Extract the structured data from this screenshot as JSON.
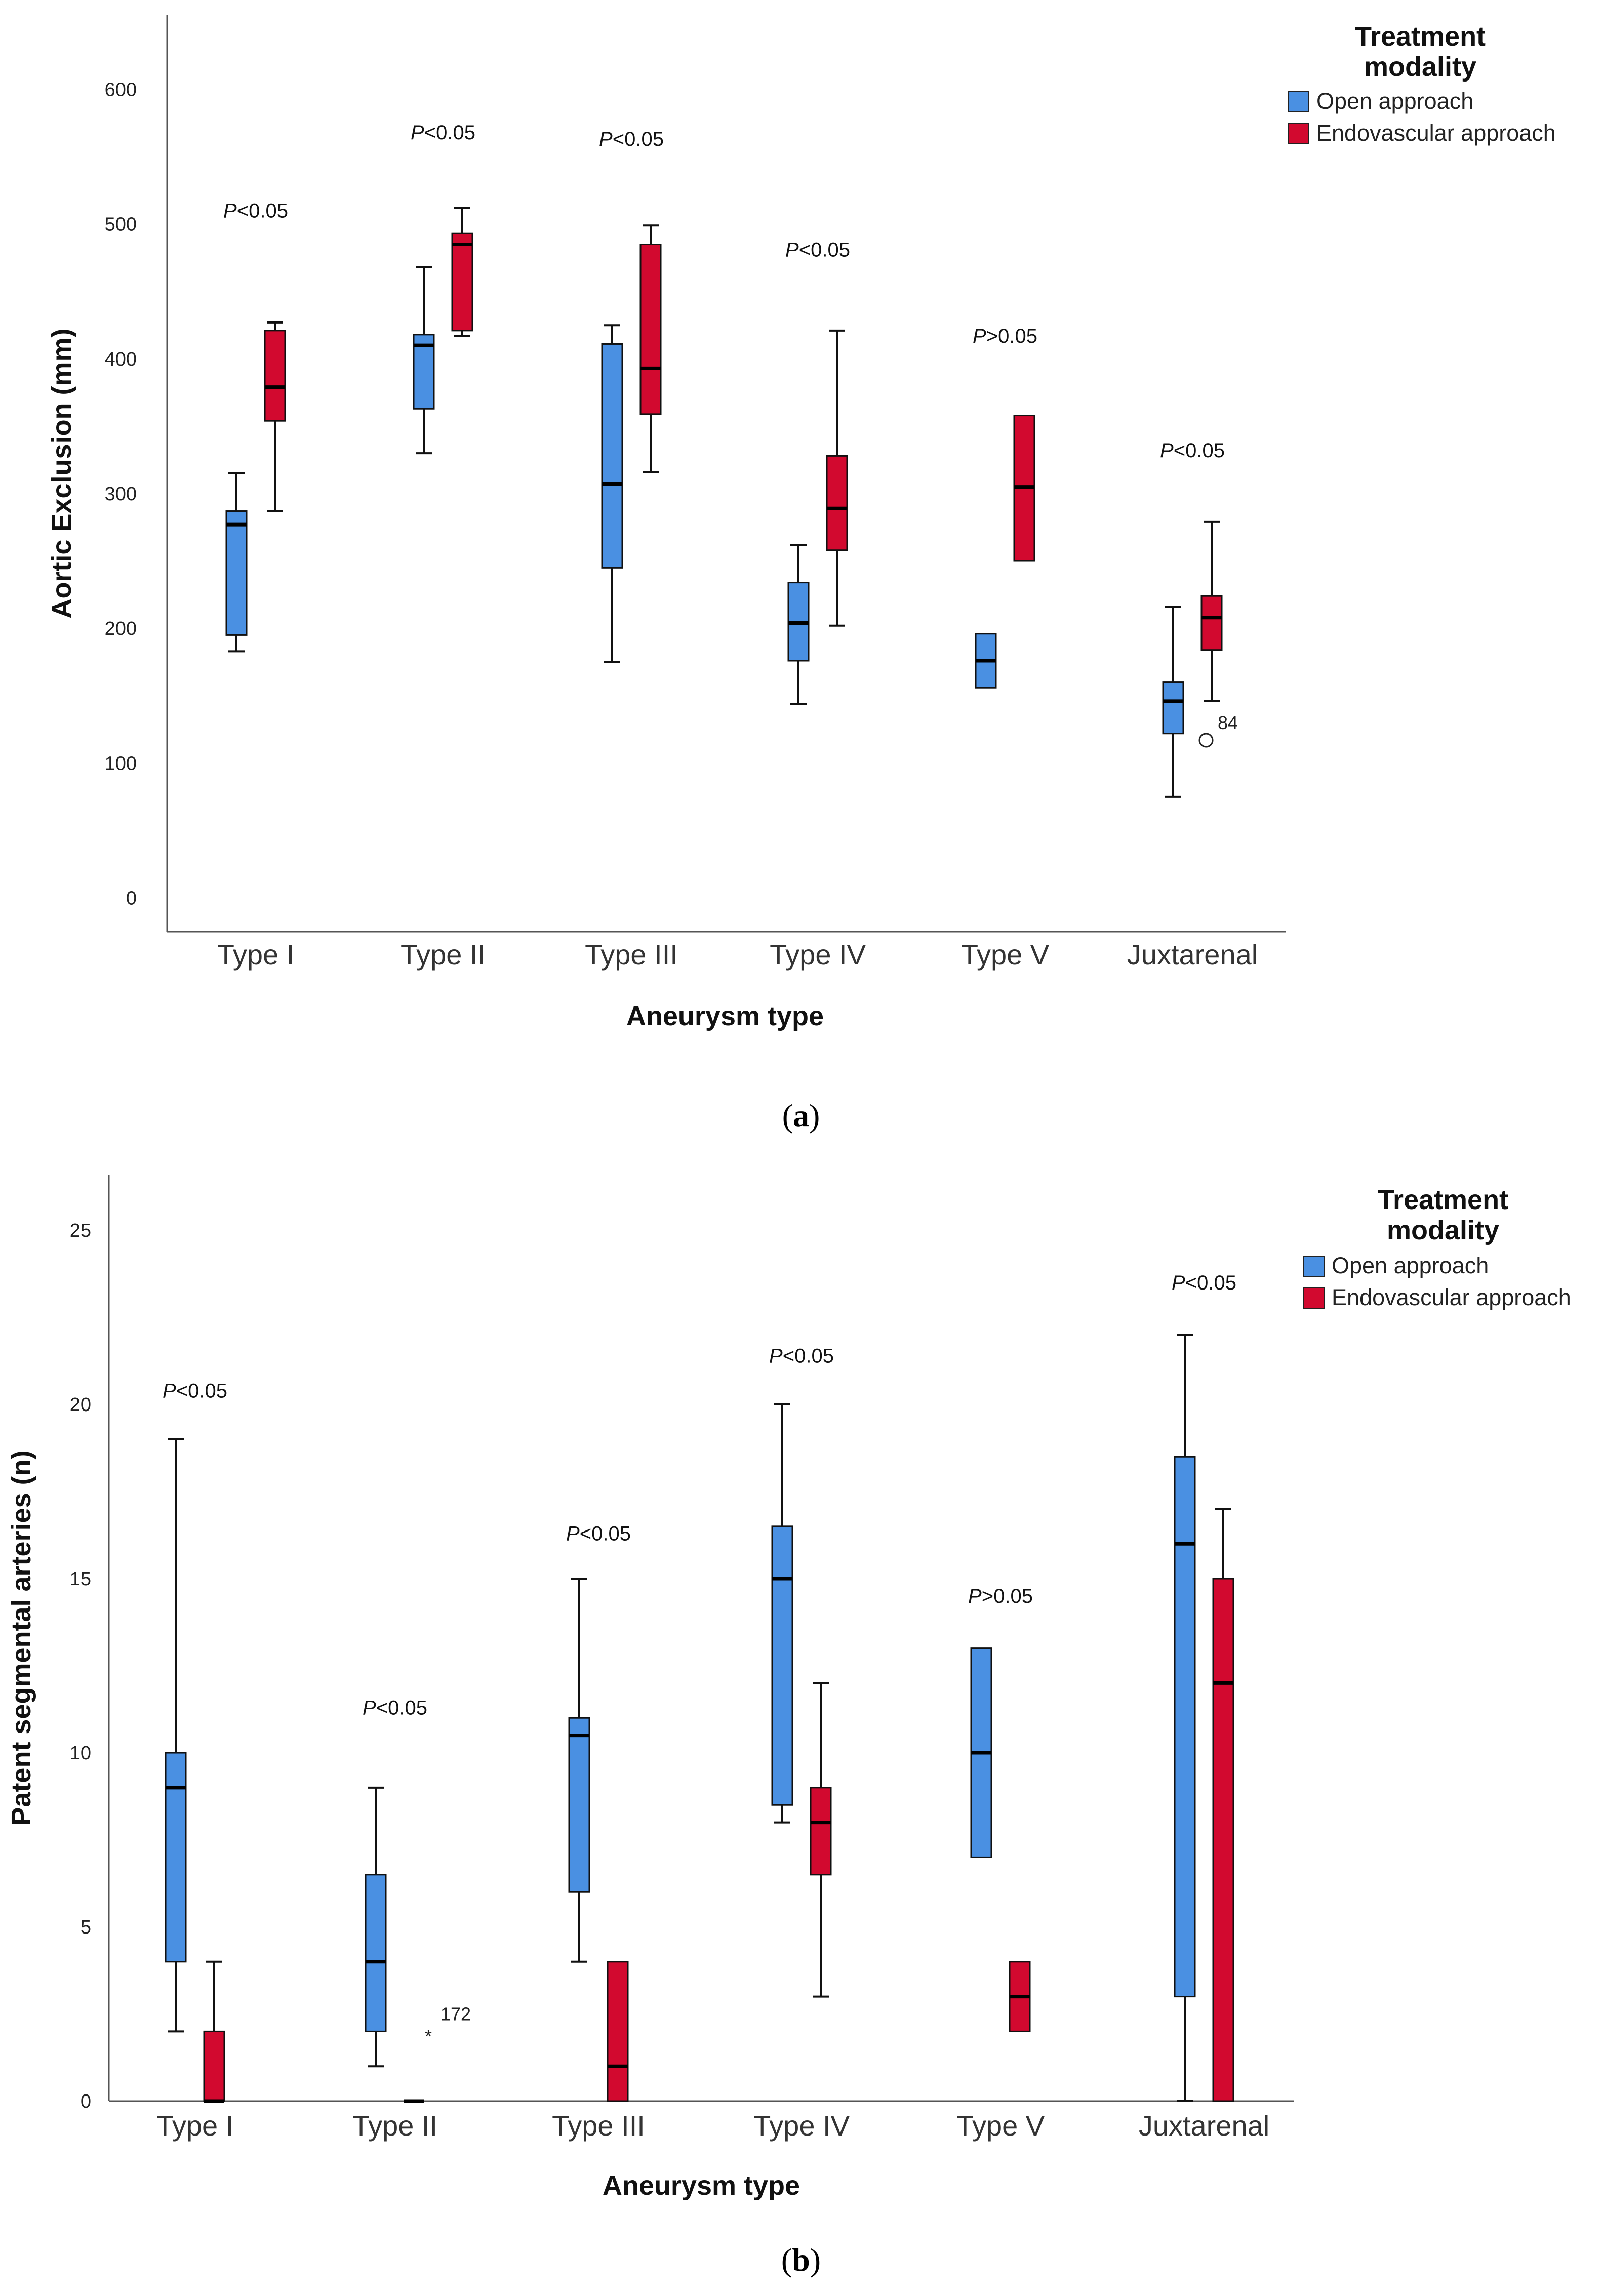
{
  "chart_data": [
    {
      "type": "boxplot",
      "panel_label": "a",
      "ylabel": "Aortic Exclusion (mm)",
      "xlabel": "Aneurysm type",
      "ylim": [
        -25,
        655
      ],
      "yticks": [
        0,
        100,
        200,
        300,
        400,
        500,
        600
      ],
      "categories": [
        "Type I",
        "Type II",
        "Type III",
        "Type IV",
        "Type V",
        "Juxtarenal"
      ],
      "legend": {
        "title_line1": "Treatment",
        "title_line2": "modality",
        "items": [
          "Open approach",
          "Endovascular approach"
        ],
        "position": "top-right"
      },
      "p_values": [
        {
          "prefix": "P",
          "rest": "<0.05",
          "y": 505
        },
        {
          "prefix": "P",
          "rest": "<0.05",
          "y": 563
        },
        {
          "prefix": "P",
          "rest": "<0.05",
          "y": 558
        },
        {
          "prefix": "P",
          "rest": "<0.05",
          "y": 476
        },
        {
          "prefix": "P",
          "rest": ">0.05",
          "y": 412
        },
        {
          "prefix": "P",
          "rest": "<0.05",
          "y": 327
        }
      ],
      "series": [
        {
          "name": "Open approach",
          "color": "#4a90e2",
          "boxes": [
            {
              "min": 183,
              "q1": 195,
              "median": 277,
              "q3": 287,
              "max": 315
            },
            {
              "min": 330,
              "q1": 363,
              "median": 410,
              "q3": 418,
              "max": 468
            },
            {
              "min": 175,
              "q1": 245,
              "median": 307,
              "q3": 411,
              "max": 425
            },
            {
              "min": 144,
              "q1": 176,
              "median": 204,
              "q3": 234,
              "max": 262
            },
            {
              "min": 156,
              "q1": 156,
              "median": 176,
              "q3": 196,
              "max": 196
            },
            {
              "min": 75,
              "q1": 122,
              "median": 146,
              "q3": 160,
              "max": 216
            }
          ],
          "outliers": [
            {
              "category": "Juxtarenal",
              "value": 117,
              "label": "84",
              "marker": "circle"
            }
          ]
        },
        {
          "name": "Endovascular approach",
          "color": "#d2092f",
          "boxes": [
            {
              "min": 287,
              "q1": 354,
              "median": 379,
              "q3": 421,
              "max": 427
            },
            {
              "min": 417,
              "q1": 421,
              "median": 485,
              "q3": 493,
              "max": 512
            },
            {
              "min": 316,
              "q1": 359,
              "median": 393,
              "q3": 485,
              "max": 499
            },
            {
              "min": 202,
              "q1": 258,
              "median": 289,
              "q3": 328,
              "max": 421
            },
            {
              "min": 250,
              "q1": 250,
              "median": 305,
              "q3": 358,
              "max": 358
            },
            {
              "min": 146,
              "q1": 184,
              "median": 208,
              "q3": 224,
              "max": 279
            }
          ],
          "outliers": []
        }
      ]
    },
    {
      "type": "boxplot",
      "panel_label": "b",
      "ylabel": "Patent segmental arteries (n)",
      "xlabel": "Aneurysm type",
      "ylim": [
        0,
        26.6
      ],
      "yticks": [
        0,
        5,
        10,
        15,
        20,
        25
      ],
      "categories": [
        "Type I",
        "Type II",
        "Type III",
        "Type IV",
        "Type V",
        "Juxtarenal"
      ],
      "legend": {
        "title_line1": "Treatment",
        "title_line2": "modality",
        "items": [
          "Open approach",
          "Endovascular approach"
        ],
        "position": "top-right"
      },
      "p_values": [
        {
          "prefix": "P",
          "rest": "<0.05",
          "y": 20.2
        },
        {
          "prefix": "P",
          "rest": "<0.05",
          "y": 11.1
        },
        {
          "prefix": "P",
          "rest": "<0.05",
          "y": 16.1
        },
        {
          "prefix": "P",
          "rest": "<0.05",
          "y": 21.2
        },
        {
          "prefix": "P",
          "rest": ">0.05",
          "y": 14.3
        },
        {
          "prefix": "P",
          "rest": "<0.05",
          "y": 23.3
        }
      ],
      "series": [
        {
          "name": "Open approach",
          "color": "#4a90e2",
          "boxes": [
            {
              "min": 2,
              "q1": 4,
              "median": 9,
              "q3": 10,
              "max": 19
            },
            {
              "min": 1,
              "q1": 2,
              "median": 4,
              "q3": 6.5,
              "max": 9
            },
            {
              "min": 4,
              "q1": 6,
              "median": 10.5,
              "q3": 11,
              "max": 15
            },
            {
              "min": 8,
              "q1": 8.5,
              "median": 15,
              "q3": 16.5,
              "max": 20
            },
            {
              "min": 7,
              "q1": 7,
              "median": 10,
              "q3": 13,
              "max": 13
            },
            {
              "min": 0,
              "q1": 3,
              "median": 16,
              "q3": 18.5,
              "max": 22
            }
          ],
          "outliers": []
        },
        {
          "name": "Endovascular approach",
          "color": "#d2092f",
          "boxes": [
            {
              "min": 0,
              "q1": 0,
              "median": 0,
              "q3": 2,
              "max": 4
            },
            {
              "min": 0,
              "q1": 0,
              "median": 0,
              "q3": 0,
              "max": 0
            },
            {
              "min": 0,
              "q1": 0,
              "median": 1,
              "q3": 4,
              "max": 4
            },
            {
              "min": 3,
              "q1": 6.5,
              "median": 8,
              "q3": 9,
              "max": 12
            },
            {
              "min": 2,
              "q1": 2,
              "median": 3,
              "q3": 4,
              "max": 4
            },
            {
              "min": 0,
              "q1": 0,
              "median": 12,
              "q3": 15,
              "max": 17
            }
          ],
          "outliers": [
            {
              "category": "Type II",
              "value": 2,
              "label": "172",
              "marker": "star"
            }
          ]
        }
      ]
    }
  ]
}
